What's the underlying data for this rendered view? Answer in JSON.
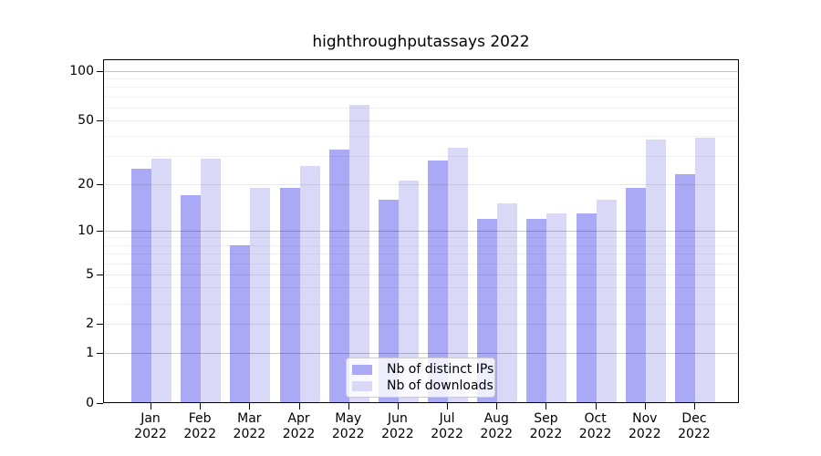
{
  "chart_data": {
    "type": "bar",
    "title": "highthroughputassays 2022",
    "categories": [
      "Jan 2022",
      "Feb 2022",
      "Mar 2022",
      "Apr 2022",
      "May 2022",
      "Jun 2022",
      "Jul 2022",
      "Aug 2022",
      "Sep 2022",
      "Oct 2022",
      "Nov 2022",
      "Dec 2022"
    ],
    "series": [
      {
        "name": "Nb of distinct IPs",
        "color": "#a9a9f5",
        "values": [
          25,
          17,
          8,
          19,
          33,
          16,
          28,
          12,
          12,
          13,
          19,
          23
        ]
      },
      {
        "name": "Nb of downloads",
        "color": "#d9d9f7",
        "values": [
          29,
          29,
          19,
          26,
          62,
          21,
          34,
          15,
          13,
          16,
          38,
          39
        ]
      }
    ],
    "xlabel": "",
    "ylabel": "",
    "yscale": "log1p",
    "ylim": [
      0,
      119
    ],
    "y_ticks": [
      0,
      1,
      2,
      5,
      10,
      20,
      50,
      100
    ],
    "grid": {
      "on": true,
      "decade_lines": [
        1,
        10,
        100
      ],
      "mid_lines": [
        2,
        5,
        20,
        50
      ],
      "minor_lines": [
        3,
        4,
        6,
        7,
        8,
        9,
        30,
        40,
        60,
        70,
        80,
        90
      ]
    },
    "legend_position": "lower center",
    "colors": {
      "background": "#ffffff",
      "axis": "#000000",
      "grid_decade": "#c8c8c8",
      "grid_minor": "#ededed",
      "legend_border": "#cccccc"
    }
  }
}
